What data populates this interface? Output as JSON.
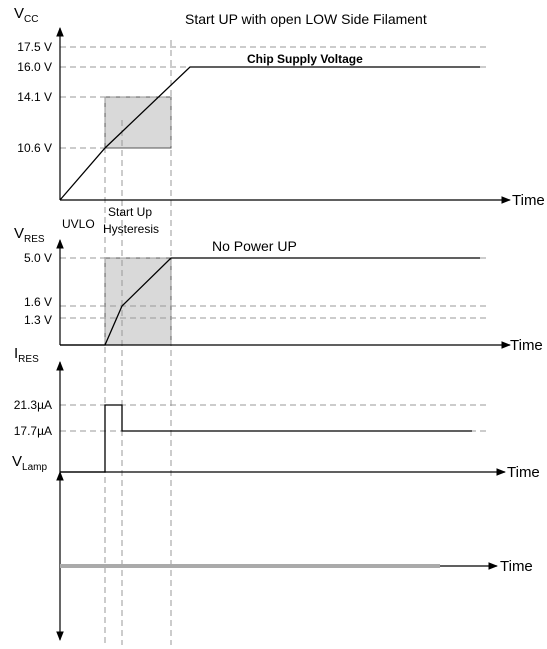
{
  "title": "Start UP with open LOW Side Filament",
  "panels": [
    {
      "axis_label": {
        "main": "V",
        "sub": "CC"
      },
      "levels": [
        "17.5 V",
        "16.0 V",
        "14.1 V",
        "10.6 V"
      ],
      "trace_label": "Chip Supply  Voltage",
      "time_label": "Time"
    },
    {
      "axis_label": {
        "main": "V",
        "sub": "RES"
      },
      "levels": [
        "5.0 V",
        "1.6 V",
        "1.3 V"
      ],
      "trace_label": "No Power UP",
      "time_label": "Time"
    },
    {
      "axis_label": {
        "main": "I",
        "sub": "RES"
      },
      "levels": [
        "21.3µA",
        "17.7µA"
      ],
      "time_label": "Time"
    },
    {
      "axis_label": {
        "main": "V",
        "sub": "Lamp"
      },
      "time_label": "Time"
    }
  ],
  "phases": {
    "uvlo": "UVLO",
    "startup": [
      "Start Up",
      "Hysteresis"
    ]
  }
}
